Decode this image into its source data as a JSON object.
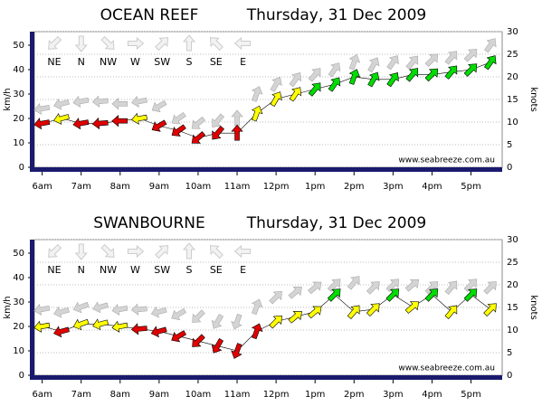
{
  "chart_data": [
    {
      "type": "wind",
      "title": "OCEAN REEF",
      "subtitle": "Thursday, 31 Dec 2009",
      "y_label": "km/h",
      "y2_label": "knots",
      "footer": "www.seabreeze.com.au",
      "compass": [
        "NE",
        "N",
        "NW",
        "W",
        "SW",
        "S",
        "SE",
        "E"
      ],
      "x": [
        6,
        6.5,
        7,
        7.5,
        8,
        8.5,
        9,
        9.5,
        10,
        10.5,
        11,
        11.5,
        12,
        12.5,
        13,
        13.5,
        14,
        14.5,
        15,
        15.5,
        16,
        16.5,
        17,
        17.5
      ],
      "values": [
        18,
        20,
        18,
        18,
        19,
        20,
        17,
        15,
        12,
        14,
        14,
        22,
        28,
        30,
        32,
        34,
        37,
        36,
        36,
        38,
        38,
        39,
        40,
        43
      ],
      "gust": [
        24,
        26,
        27,
        27,
        26,
        27,
        25,
        20,
        18,
        19,
        20,
        30,
        34,
        36,
        38,
        40,
        43,
        42,
        43,
        43,
        44,
        45,
        46,
        50
      ],
      "direction": [
        80,
        75,
        80,
        85,
        90,
        80,
        60,
        55,
        50,
        40,
        180,
        200,
        210,
        215,
        220,
        215,
        200,
        210,
        215,
        220,
        225,
        220,
        225,
        215
      ],
      "xlim": [
        5.8,
        17.8
      ],
      "xticks": [
        {
          "value": 6,
          "label": "6am"
        },
        {
          "value": 7,
          "label": "7am"
        },
        {
          "value": 8,
          "label": "8am"
        },
        {
          "value": 9,
          "label": "9am"
        },
        {
          "value": 10,
          "label": "10am"
        },
        {
          "value": 11,
          "label": "11am"
        },
        {
          "value": 12,
          "label": "12pm"
        },
        {
          "value": 13,
          "label": "1pm"
        },
        {
          "value": 14,
          "label": "2pm"
        },
        {
          "value": 15,
          "label": "3pm"
        },
        {
          "value": 16,
          "label": "4pm"
        },
        {
          "value": 17,
          "label": "5pm"
        }
      ],
      "ylim": [
        0,
        55.56
      ],
      "yticks": [
        0,
        10,
        20,
        30,
        40,
        50
      ],
      "y2lim": [
        0,
        30
      ],
      "y2ticks": [
        0,
        5,
        10,
        15,
        20,
        25,
        30
      ],
      "speed_colors": [
        {
          "max": 20,
          "color": "#e00000"
        },
        {
          "max": 32,
          "color": "#ffff00"
        },
        {
          "max": 100,
          "color": "#00dd00"
        }
      ],
      "gust_color": "#d4d4d4",
      "grid": true
    },
    {
      "type": "wind",
      "title": "SWANBOURNE",
      "subtitle": "Thursday, 31 Dec 2009",
      "y_label": "km/h",
      "y2_label": "knots",
      "footer": "www.seabreeze.com.au",
      "compass": [
        "NE",
        "N",
        "NW",
        "W",
        "SW",
        "S",
        "SE",
        "E"
      ],
      "x": [
        6,
        6.5,
        7,
        7.5,
        8,
        8.5,
        9,
        9.5,
        10,
        10.5,
        11,
        11.5,
        12,
        12.5,
        13,
        13.5,
        14,
        14.5,
        15,
        15.5,
        16,
        16.5,
        17,
        17.5
      ],
      "values": [
        20,
        18,
        21,
        21,
        20,
        19,
        18,
        16,
        14,
        12,
        10,
        18,
        22,
        24,
        26,
        33,
        26,
        27,
        33,
        28,
        33,
        26,
        33,
        27
      ],
      "gust": [
        27,
        26,
        28,
        28,
        27,
        27,
        26,
        25,
        24,
        22,
        22,
        28,
        32,
        34,
        36,
        37,
        38,
        36,
        37,
        37,
        36,
        36,
        37,
        36
      ],
      "direction": [
        80,
        75,
        70,
        75,
        80,
        85,
        75,
        60,
        45,
        30,
        20,
        200,
        225,
        230,
        230,
        225,
        220,
        225,
        225,
        230,
        225,
        220,
        225,
        225
      ],
      "xlim": [
        5.8,
        17.8
      ],
      "xticks": [
        {
          "value": 6,
          "label": "6am"
        },
        {
          "value": 7,
          "label": "7am"
        },
        {
          "value": 8,
          "label": "8am"
        },
        {
          "value": 9,
          "label": "9am"
        },
        {
          "value": 10,
          "label": "10am"
        },
        {
          "value": 11,
          "label": "11am"
        },
        {
          "value": 12,
          "label": "12pm"
        },
        {
          "value": 13,
          "label": "1pm"
        },
        {
          "value": 14,
          "label": "2pm"
        },
        {
          "value": 15,
          "label": "3pm"
        },
        {
          "value": 16,
          "label": "4pm"
        },
        {
          "value": 17,
          "label": "5pm"
        }
      ],
      "ylim": [
        0,
        55.56
      ],
      "yticks": [
        0,
        10,
        20,
        30,
        40,
        50
      ],
      "y2lim": [
        0,
        30
      ],
      "y2ticks": [
        0,
        5,
        10,
        15,
        20,
        25,
        30
      ],
      "speed_colors": [
        {
          "max": 20,
          "color": "#e00000"
        },
        {
          "max": 32,
          "color": "#ffff00"
        },
        {
          "max": 100,
          "color": "#00dd00"
        }
      ],
      "gust_color": "#d4d4d4",
      "grid": true
    }
  ]
}
